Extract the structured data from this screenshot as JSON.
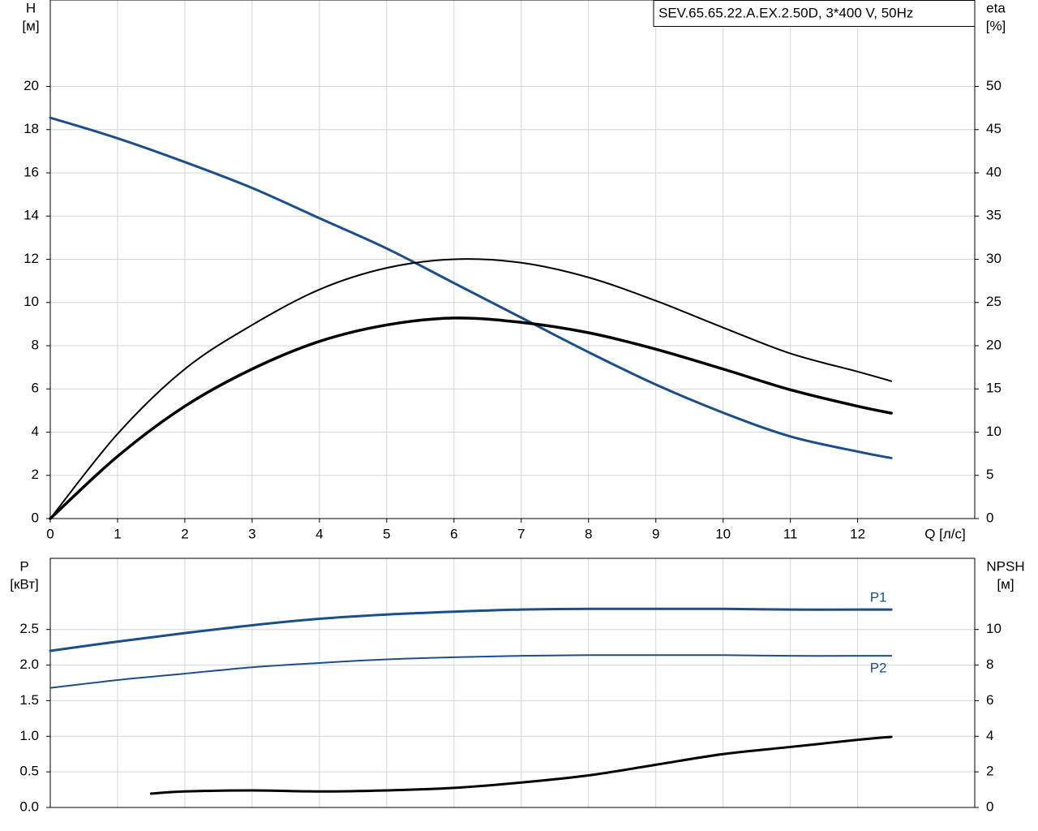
{
  "chart_data": [
    {
      "type": "line",
      "title": "SEV.65.65.22.A.EX.2.50D, 3*400 V, 50Hz",
      "xlabel": "Q [л/с]",
      "ylabel": [
        "H",
        "[м]"
      ],
      "y2label": [
        "eta",
        "[%]"
      ],
      "xlim": [
        0,
        13.74
      ],
      "xticks": [
        0,
        1,
        2,
        3,
        4,
        5,
        6,
        7,
        8,
        9,
        10,
        11,
        12
      ],
      "ylim": [
        0,
        24
      ],
      "yticks": [
        0,
        2,
        4,
        6,
        8,
        10,
        12,
        14,
        16,
        18,
        20
      ],
      "y2lim": [
        0,
        60
      ],
      "y2ticks": [
        0,
        5,
        10,
        15,
        20,
        25,
        30,
        35,
        40,
        45,
        50
      ],
      "grid": true,
      "series": [
        {
          "color": "#1b4f8a",
          "width": 3,
          "x": [
            0,
            1,
            2,
            3,
            4,
            5,
            6,
            7,
            8,
            9,
            10,
            11,
            12,
            12.5
          ],
          "values": [
            18.55,
            17.6,
            16.5,
            15.3,
            13.9,
            12.5,
            10.9,
            9.3,
            7.7,
            6.2,
            4.9,
            3.8,
            3.1,
            2.8
          ]
        },
        {
          "color": "#000000",
          "width": 2,
          "axis": "y2",
          "x": [
            0,
            1,
            2,
            3,
            4,
            5,
            6,
            7,
            8,
            9,
            10,
            11,
            12,
            12.5
          ],
          "values": [
            0,
            9.8,
            17.3,
            22.4,
            26.5,
            29,
            30,
            29.6,
            27.9,
            25.2,
            22.1,
            19.1,
            17,
            15.9
          ]
        },
        {
          "color": "#000000",
          "width": 3.5,
          "axis": "y2",
          "x": [
            0,
            1,
            2,
            3,
            4,
            5,
            6,
            7,
            8,
            9,
            10,
            11,
            12,
            12.5
          ],
          "values": [
            0,
            7.2,
            13,
            17.3,
            20.5,
            22.4,
            23.2,
            22.7,
            21.5,
            19.6,
            17.3,
            14.9,
            13,
            12.2
          ]
        }
      ]
    },
    {
      "type": "line",
      "ylabel": [
        "P",
        "[кВт]"
      ],
      "y2label": [
        "NPSH",
        "[м]"
      ],
      "xlim": [
        0,
        13.74
      ],
      "ylim": [
        0,
        3.5
      ],
      "yticks": [
        {
          "value": 0,
          "label": "0.0"
        },
        {
          "value": 0.5,
          "label": "0.5"
        },
        {
          "value": 1,
          "label": "1.0"
        },
        {
          "value": 1.5,
          "label": "1.5"
        },
        {
          "value": 2,
          "label": "2.0"
        },
        {
          "value": 2.5,
          "label": "2.5"
        }
      ],
      "y2lim": [
        0,
        14
      ],
      "y2ticks": [
        0,
        2,
        4,
        6,
        8,
        10
      ],
      "grid": true,
      "series": [
        {
          "name": "P1",
          "color": "#1b4f8a",
          "width": 3,
          "x": [
            0,
            1,
            2,
            3,
            4,
            5,
            6,
            7,
            8,
            9,
            10,
            11,
            12,
            12.5
          ],
          "values": [
            2.2,
            2.33,
            2.45,
            2.56,
            2.65,
            2.71,
            2.75,
            2.78,
            2.79,
            2.79,
            2.79,
            2.78,
            2.78,
            2.78
          ]
        },
        {
          "name": "P2",
          "color": "#1b4f8a",
          "width": 2,
          "x": [
            0,
            1,
            2,
            3,
            4,
            5,
            6,
            7,
            8,
            9,
            10,
            11,
            12,
            12.5
          ],
          "values": [
            1.68,
            1.79,
            1.88,
            1.97,
            2.03,
            2.08,
            2.11,
            2.13,
            2.14,
            2.14,
            2.14,
            2.13,
            2.13,
            2.13
          ]
        },
        {
          "color": "#000000",
          "width": 3,
          "axis": "y2",
          "x": [
            1.5,
            2,
            3,
            4,
            5,
            6,
            7,
            8,
            9,
            10,
            11,
            12,
            12.5
          ],
          "values": [
            0.78,
            0.9,
            0.96,
            0.9,
            0.96,
            1.1,
            1.4,
            1.8,
            2.4,
            3.0,
            3.4,
            3.8,
            3.97
          ]
        }
      ]
    }
  ]
}
